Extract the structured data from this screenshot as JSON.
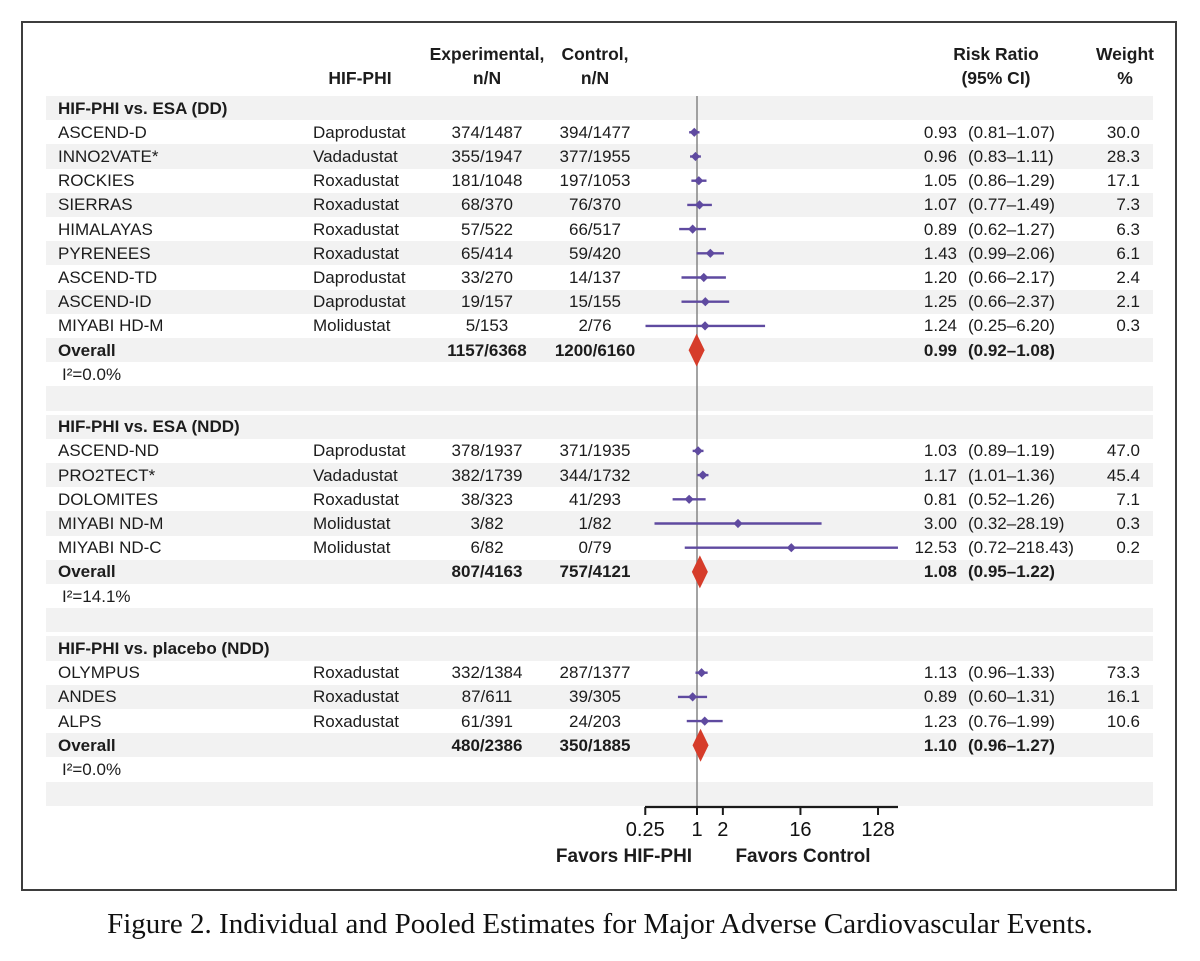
{
  "figure": {
    "caption": "Figure 2. Individual and Pooled Estimates for Major Adverse Cardiovascular Events."
  },
  "table_header": {
    "hifphi": "HIF-PHI",
    "experimental_l1": "Experimental,",
    "experimental_l2": "n/N",
    "control_l1": "Control,",
    "control_l2": "n/N",
    "risk_ratio_l1": "Risk Ratio",
    "risk_ratio_l2": "(95% CI)",
    "weight_l1": "Weight",
    "weight_l2": "%"
  },
  "colors": {
    "ci_purple": "#5f4aa0",
    "overall_red": "#d63c2a",
    "row_shade": "#f2f2f2",
    "frame_border": "#3d3d3d",
    "reference_line": "#8c8c8c",
    "axis": "#1a1a1a"
  },
  "chart_data": {
    "type": "forest",
    "x_scale": "log2",
    "x_ticks": [
      0.25,
      1,
      2,
      16,
      128
    ],
    "x_range": [
      0.25,
      220
    ],
    "reference_value": 1,
    "footer": {
      "favors_left": "Favors HIF-PHI",
      "favors_right": "Favors Control"
    },
    "sections": [
      {
        "title": "HIF-PHI vs. ESA (DD)",
        "i2_label": "I²=0.0%",
        "studies": [
          {
            "name": "ASCEND-D",
            "drug": "Daprodustat",
            "experimental": "374/1487",
            "control": "394/1477",
            "rr": 0.93,
            "lo": 0.81,
            "hi": 1.07,
            "rr_text": "0.93",
            "ci_text": "(0.81–1.07)",
            "weight": "30.0"
          },
          {
            "name": "INNO2VATE*",
            "drug": "Vadadustat",
            "experimental": "355/1947",
            "control": "377/1955",
            "rr": 0.96,
            "lo": 0.83,
            "hi": 1.11,
            "rr_text": "0.96",
            "ci_text": "(0.83–1.11)",
            "weight": "28.3"
          },
          {
            "name": "ROCKIES",
            "drug": "Roxadustat",
            "experimental": "181/1048",
            "control": "197/1053",
            "rr": 1.05,
            "lo": 0.86,
            "hi": 1.29,
            "rr_text": "1.05",
            "ci_text": "(0.86–1.29)",
            "weight": "17.1"
          },
          {
            "name": "SIERRAS",
            "drug": "Roxadustat",
            "experimental": "68/370",
            "control": "76/370",
            "rr": 1.07,
            "lo": 0.77,
            "hi": 1.49,
            "rr_text": "1.07",
            "ci_text": "(0.77–1.49)",
            "weight": "7.3"
          },
          {
            "name": "HIMALAYAS",
            "drug": "Roxadustat",
            "experimental": "57/522",
            "control": "66/517",
            "rr": 0.89,
            "lo": 0.62,
            "hi": 1.27,
            "rr_text": "0.89",
            "ci_text": "(0.62–1.27)",
            "weight": "6.3"
          },
          {
            "name": "PYRENEES",
            "drug": "Roxadustat",
            "experimental": "65/414",
            "control": "59/420",
            "rr": 1.43,
            "lo": 0.99,
            "hi": 2.06,
            "rr_text": "1.43",
            "ci_text": "(0.99–2.06)",
            "weight": "6.1"
          },
          {
            "name": "ASCEND-TD",
            "drug": "Daprodustat",
            "experimental": "33/270",
            "control": "14/137",
            "rr": 1.2,
            "lo": 0.66,
            "hi": 2.17,
            "rr_text": "1.20",
            "ci_text": "(0.66–2.17)",
            "weight": "2.4"
          },
          {
            "name": "ASCEND-ID",
            "drug": "Daprodustat",
            "experimental": "19/157",
            "control": "15/155",
            "rr": 1.25,
            "lo": 0.66,
            "hi": 2.37,
            "rr_text": "1.25",
            "ci_text": "(0.66–2.37)",
            "weight": "2.1"
          },
          {
            "name": "MIYABI HD-M",
            "drug": "Molidustat",
            "experimental": "5/153",
            "control": "2/76",
            "rr": 1.24,
            "lo": 0.25,
            "hi": 6.2,
            "rr_text": "1.24",
            "ci_text": "(0.25–6.20)",
            "weight": "0.3"
          }
        ],
        "overall": {
          "label": "Overall",
          "experimental": "1157/6368",
          "control": "1200/6160",
          "rr": 0.99,
          "lo": 0.92,
          "hi": 1.08,
          "rr_text": "0.99",
          "ci_text": "(0.92–1.08)"
        }
      },
      {
        "title": "HIF-PHI vs. ESA (NDD)",
        "i2_label": "I²=14.1%",
        "studies": [
          {
            "name": "ASCEND-ND",
            "drug": "Daprodustat",
            "experimental": "378/1937",
            "control": "371/1935",
            "rr": 1.03,
            "lo": 0.89,
            "hi": 1.19,
            "rr_text": "1.03",
            "ci_text": "(0.89–1.19)",
            "weight": "47.0"
          },
          {
            "name": "PRO2TECT*",
            "drug": "Vadadustat",
            "experimental": "382/1739",
            "control": "344/1732",
            "rr": 1.17,
            "lo": 1.01,
            "hi": 1.36,
            "rr_text": "1.17",
            "ci_text": "(1.01–1.36)",
            "weight": "45.4"
          },
          {
            "name": "DOLOMITES",
            "drug": "Roxadustat",
            "experimental": "38/323",
            "control": "41/293",
            "rr": 0.81,
            "lo": 0.52,
            "hi": 1.26,
            "rr_text": "0.81",
            "ci_text": "(0.52–1.26)",
            "weight": "7.1"
          },
          {
            "name": "MIYABI ND-M",
            "drug": "Molidustat",
            "experimental": "3/82",
            "control": "1/82",
            "rr": 3.0,
            "lo": 0.32,
            "hi": 28.19,
            "rr_text": "3.00",
            "ci_text": "(0.32–28.19)",
            "weight": "0.3"
          },
          {
            "name": "MIYABI ND-C",
            "drug": "Molidustat",
            "experimental": "6/82",
            "control": "0/79",
            "rr": 12.53,
            "lo": 0.72,
            "hi": 218.43,
            "rr_text": "12.53",
            "ci_text": "(0.72–218.43)",
            "weight": "0.2"
          }
        ],
        "overall": {
          "label": "Overall",
          "experimental": "807/4163",
          "control": "757/4121",
          "rr": 1.08,
          "lo": 0.95,
          "hi": 1.22,
          "rr_text": "1.08",
          "ci_text": "(0.95–1.22)"
        }
      },
      {
        "title": "HIF-PHI vs. placebo (NDD)",
        "i2_label": "I²=0.0%",
        "studies": [
          {
            "name": "OLYMPUS",
            "drug": "Roxadustat",
            "experimental": "332/1384",
            "control": "287/1377",
            "rr": 1.13,
            "lo": 0.96,
            "hi": 1.33,
            "rr_text": "1.13",
            "ci_text": "(0.96–1.33)",
            "weight": "73.3"
          },
          {
            "name": "ANDES",
            "drug": "Roxadustat",
            "experimental": "87/611",
            "control": "39/305",
            "rr": 0.89,
            "lo": 0.6,
            "hi": 1.31,
            "rr_text": "0.89",
            "ci_text": "(0.60–1.31)",
            "weight": "16.1"
          },
          {
            "name": "ALPS",
            "drug": "Roxadustat",
            "experimental": "61/391",
            "control": "24/203",
            "rr": 1.23,
            "lo": 0.76,
            "hi": 1.99,
            "rr_text": "1.23",
            "ci_text": "(0.76–1.99)",
            "weight": "10.6"
          }
        ],
        "overall": {
          "label": "Overall",
          "experimental": "480/2386",
          "control": "350/1885",
          "rr": 1.1,
          "lo": 0.96,
          "hi": 1.27,
          "rr_text": "1.10",
          "ci_text": "(0.96–1.27)"
        }
      }
    ]
  }
}
